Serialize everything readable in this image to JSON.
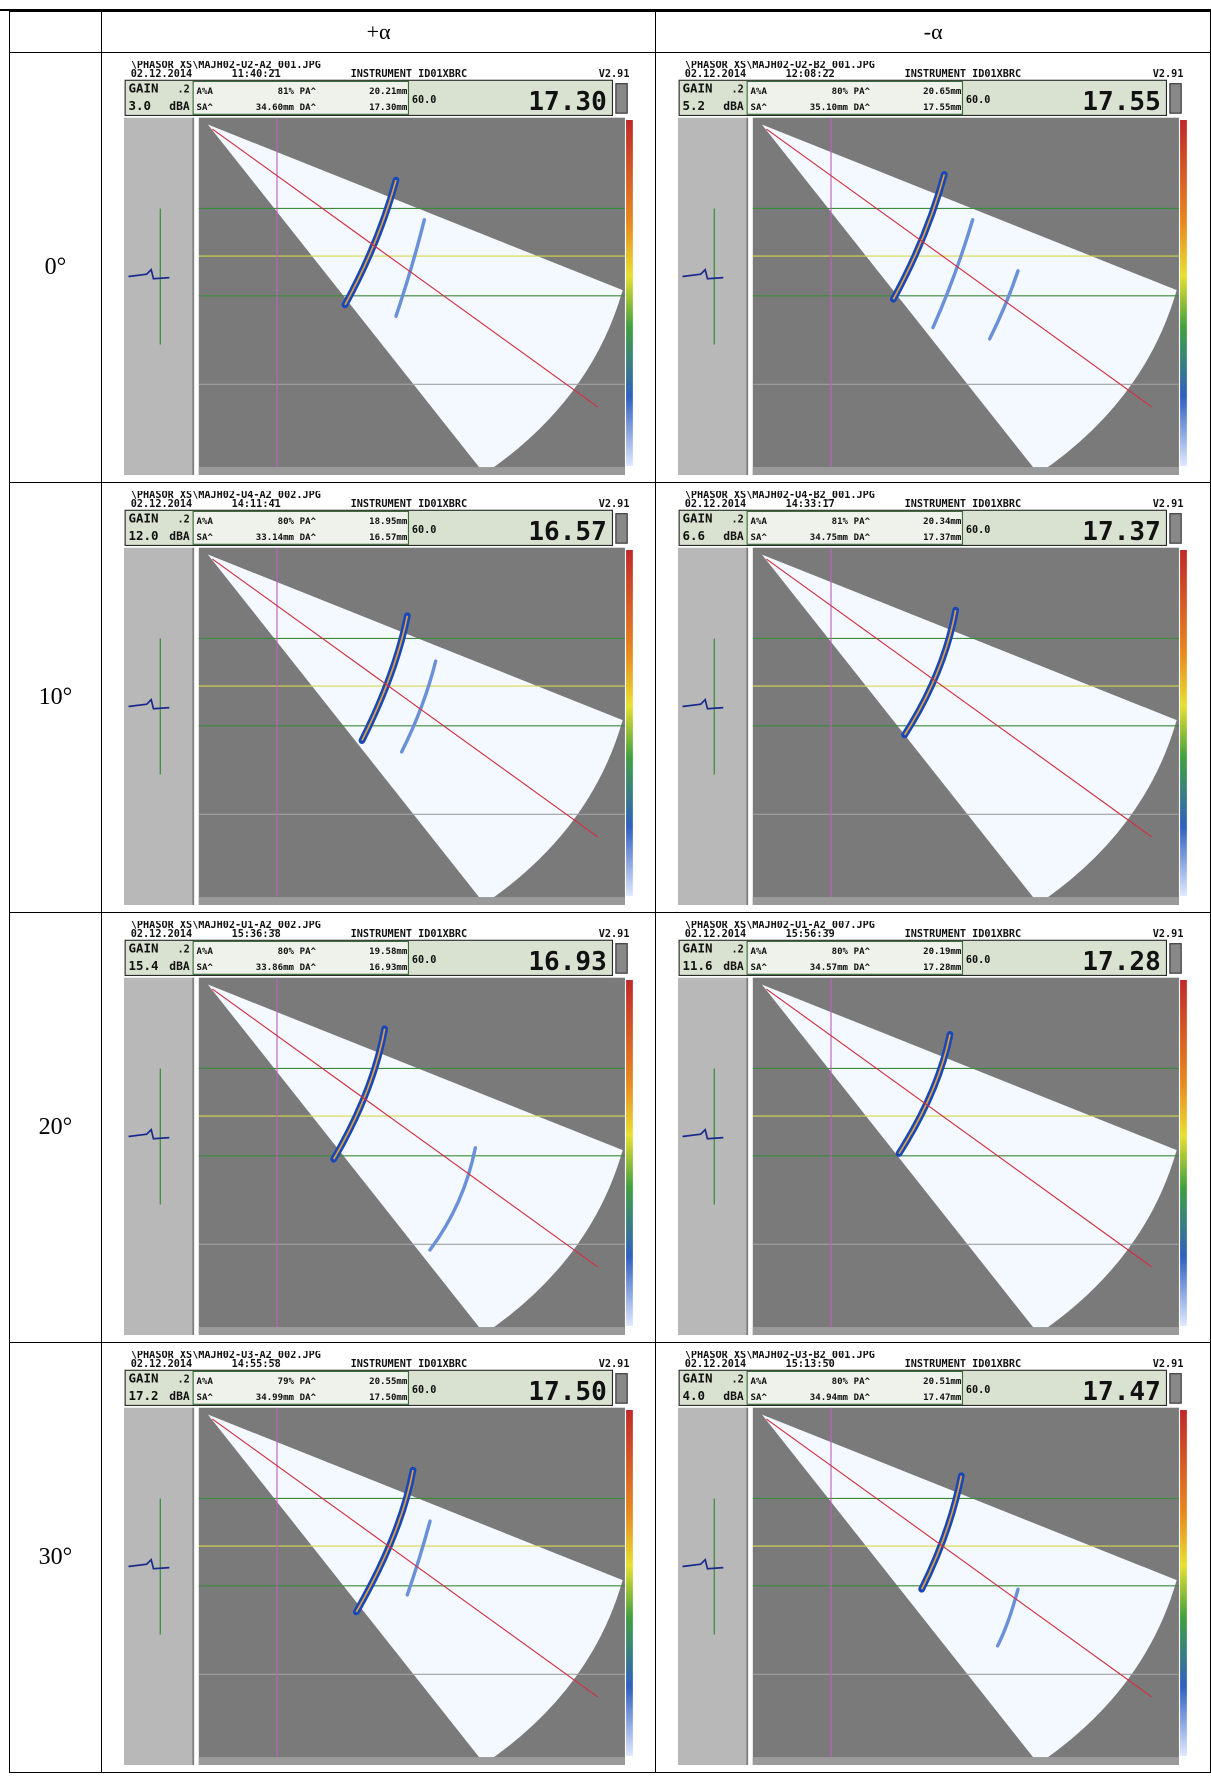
{
  "labels": {
    "gain": "GAIN",
    "step": ".2",
    "unit": "dBA",
    "amp": "A%A",
    "pa": "PA^",
    "sa": "SA^",
    "da": "DA^",
    "angle": "60.0"
  },
  "table": {
    "columns": [
      "+α",
      "-α"
    ],
    "rows": [
      {
        "angle": "0°",
        "panels": [
          {
            "file": "\\PHASOR XS\\MAJH02-U2-A2_001.JPG",
            "date": "02.12.2014",
            "time": "11:40:21",
            "instrument": "INSTRUMENT ID01XBRC",
            "version": "V2.91",
            "gain": "3.0",
            "amp": "81%",
            "pa": "20.21mm",
            "sa": "34.60mm",
            "da": "17.30mm",
            "reading": "17.30"
          },
          {
            "file": "\\PHASOR XS\\MAJH02-U2-B2_001.JPG",
            "date": "02.12.2014",
            "time": "12:08:22",
            "instrument": "INSTRUMENT ID01XBRC",
            "version": "V2.91",
            "gain": "5.2",
            "amp": "80%",
            "pa": "20.65mm",
            "sa": "35.10mm",
            "da": "17.55mm",
            "reading": "17.55"
          }
        ]
      },
      {
        "angle": "10°",
        "panels": [
          {
            "file": "\\PHASOR XS\\MAJH02-U4-A2_002.JPG",
            "date": "02.12.2014",
            "time": "14:11:41",
            "instrument": "INSTRUMENT ID01XBRC",
            "version": "V2.91",
            "gain": "12.0",
            "amp": "80%",
            "pa": "18.95mm",
            "sa": "33.14mm",
            "da": "16.57mm",
            "reading": "16.57"
          },
          {
            "file": "\\PHASOR XS\\MAJH02-U4-B2_001.JPG",
            "date": "02.12.2014",
            "time": "14:33:17",
            "instrument": "INSTRUMENT ID01XBRC",
            "version": "V2.91",
            "gain": "6.6",
            "amp": "81%",
            "pa": "20.34mm",
            "sa": "34.75mm",
            "da": "17.37mm",
            "reading": "17.37"
          }
        ]
      },
      {
        "angle": "20°",
        "panels": [
          {
            "file": "\\PHASOR XS\\MAJH02-U1-A2_002.JPG",
            "date": "02.12.2014",
            "time": "15:36:38",
            "instrument": "INSTRUMENT ID01XBRC",
            "version": "V2.91",
            "gain": "15.4",
            "amp": "80%",
            "pa": "19.58mm",
            "sa": "33.86mm",
            "da": "16.93mm",
            "reading": "16.93"
          },
          {
            "file": "\\PHASOR XS\\MAJH02-U1-A2_007.JPG",
            "date": "02.12.2014",
            "time": "15:56:39",
            "instrument": "INSTRUMENT ID01XBRC",
            "version": "V2.91",
            "gain": "11.6",
            "amp": "80%",
            "pa": "20.19mm",
            "sa": "34.57mm",
            "da": "17.28mm",
            "reading": "17.28"
          }
        ]
      },
      {
        "angle": "30°",
        "panels": [
          {
            "file": "\\PHASOR XS\\MAJH02-U3-A2_002.JPG",
            "date": "02.12.2014",
            "time": "14:55:58",
            "instrument": "INSTRUMENT ID01XBRC",
            "version": "V2.91",
            "gain": "17.2",
            "amp": "79%",
            "pa": "20.55mm",
            "sa": "34.99mm",
            "da": "17.50mm",
            "reading": "17.50"
          },
          {
            "file": "\\PHASOR XS\\MAJH02-U3-B2_001.JPG",
            "date": "02.12.2014",
            "time": "15:13:50",
            "instrument": "INSTRUMENT ID01XBRC",
            "version": "V2.91",
            "gain": "4.0",
            "amp": "80%",
            "pa": "20.51mm",
            "sa": "34.94mm",
            "da": "17.47mm",
            "reading": "17.47"
          }
        ]
      }
    ]
  }
}
